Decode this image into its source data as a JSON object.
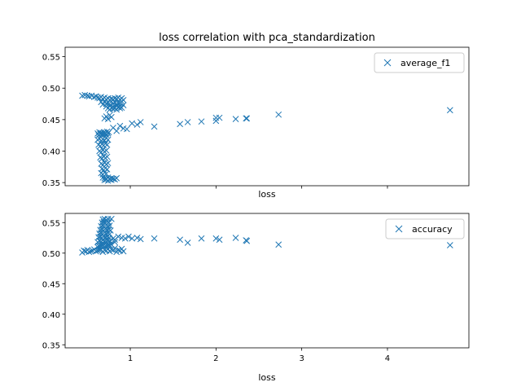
{
  "title": "loss correlation with pca_standardization",
  "marker_color": "#1f77b4",
  "chart_data": [
    {
      "type": "scatter",
      "name": "top",
      "xlabel": "loss",
      "ylabel": "",
      "xlim": [
        0.24,
        4.95
      ],
      "ylim": [
        0.345,
        0.565
      ],
      "xticks": [
        1,
        2,
        3,
        4
      ],
      "show_xtick_labels": false,
      "yticks": [
        0.35,
        0.4,
        0.45,
        0.5,
        0.55
      ],
      "ytick_labels": [
        "0.35",
        "0.40",
        "0.45",
        "0.50",
        "0.55"
      ],
      "grid": false,
      "legend": "top-right",
      "series": [
        {
          "name": "average_f1",
          "x": [
            0.44,
            0.47,
            0.5,
            0.52,
            0.55,
            0.58,
            0.6,
            0.62,
            0.64,
            0.66,
            0.68,
            0.7,
            0.72,
            0.74,
            0.76,
            0.78,
            0.8,
            0.82,
            0.84,
            0.86,
            0.88,
            0.9,
            0.92,
            0.66,
            0.7,
            0.74,
            0.78,
            0.82,
            0.86,
            0.9,
            0.68,
            0.72,
            0.76,
            0.8,
            0.84,
            0.88,
            0.72,
            0.76,
            0.8,
            0.84,
            0.88,
            0.92,
            0.74,
            0.78,
            0.82,
            0.86,
            0.9,
            0.76,
            0.8,
            0.84,
            0.88,
            0.7,
            0.72,
            0.74,
            0.76,
            0.78,
            0.8,
            0.84,
            0.88,
            0.92,
            0.96,
            1.02,
            1.08,
            1.12,
            1.28,
            1.58,
            1.67,
            1.83,
            2.0,
            2.0,
            2.04,
            2.23,
            2.35,
            2.36,
            2.73,
            4.73,
            0.62,
            0.63,
            0.64,
            0.65,
            0.66,
            0.67,
            0.68,
            0.69,
            0.7,
            0.71,
            0.72,
            0.73,
            0.74,
            0.75,
            0.62,
            0.64,
            0.66,
            0.68,
            0.7,
            0.72,
            0.74,
            0.63,
            0.65,
            0.67,
            0.69,
            0.71,
            0.73,
            0.64,
            0.66,
            0.68,
            0.7,
            0.72,
            0.65,
            0.67,
            0.69,
            0.71,
            0.73,
            0.66,
            0.68,
            0.7,
            0.72,
            0.74,
            0.67,
            0.69,
            0.71,
            0.73,
            0.66,
            0.68,
            0.7,
            0.72,
            0.68,
            0.7,
            0.72,
            0.74,
            0.76,
            0.78,
            0.7,
            0.72,
            0.74,
            0.76,
            0.78,
            0.8,
            0.82,
            0.84
          ],
          "y": [
            0.488,
            0.489,
            0.488,
            0.487,
            0.488,
            0.486,
            0.487,
            0.485,
            0.484,
            0.486,
            0.483,
            0.485,
            0.482,
            0.484,
            0.481,
            0.483,
            0.482,
            0.484,
            0.483,
            0.485,
            0.482,
            0.484,
            0.481,
            0.478,
            0.479,
            0.477,
            0.479,
            0.478,
            0.476,
            0.479,
            0.474,
            0.475,
            0.473,
            0.475,
            0.474,
            0.476,
            0.471,
            0.472,
            0.47,
            0.472,
            0.471,
            0.473,
            0.468,
            0.469,
            0.468,
            0.47,
            0.469,
            0.466,
            0.467,
            0.466,
            0.468,
            0.452,
            0.455,
            0.451,
            0.457,
            0.454,
            0.437,
            0.432,
            0.44,
            0.436,
            0.435,
            0.444,
            0.442,
            0.446,
            0.439,
            0.443,
            0.446,
            0.447,
            0.448,
            0.453,
            0.453,
            0.451,
            0.452,
            0.452,
            0.458,
            0.465,
            0.428,
            0.425,
            0.43,
            0.427,
            0.429,
            0.426,
            0.428,
            0.43,
            0.427,
            0.429,
            0.426,
            0.431,
            0.428,
            0.43,
            0.418,
            0.42,
            0.416,
            0.419,
            0.417,
            0.421,
            0.418,
            0.41,
            0.408,
            0.411,
            0.409,
            0.412,
            0.41,
            0.4,
            0.398,
            0.402,
            0.399,
            0.401,
            0.39,
            0.388,
            0.392,
            0.389,
            0.391,
            0.38,
            0.378,
            0.382,
            0.379,
            0.381,
            0.372,
            0.37,
            0.373,
            0.371,
            0.365,
            0.363,
            0.366,
            0.364,
            0.358,
            0.357,
            0.356,
            0.358,
            0.356,
            0.357,
            0.354,
            0.355,
            0.353,
            0.355,
            0.354,
            0.356,
            0.355,
            0.357
          ]
        }
      ]
    },
    {
      "type": "scatter",
      "name": "bottom",
      "xlabel": "loss",
      "ylabel": "",
      "xlim": [
        0.24,
        4.95
      ],
      "ylim": [
        0.345,
        0.565
      ],
      "xticks": [
        1,
        2,
        3,
        4
      ],
      "xtick_labels": [
        "1",
        "2",
        "3",
        "4"
      ],
      "show_xtick_labels": true,
      "yticks": [
        0.35,
        0.4,
        0.45,
        0.5,
        0.55
      ],
      "ytick_labels": [
        "0.35",
        "0.40",
        "0.45",
        "0.50",
        "0.55"
      ],
      "grid": false,
      "legend": "top-right",
      "series": [
        {
          "name": "accuracy",
          "x": [
            0.44,
            0.48,
            0.52,
            0.56,
            0.6,
            0.64,
            0.68,
            0.72,
            0.76,
            0.8,
            0.84,
            0.88,
            0.92,
            0.46,
            0.5,
            0.54,
            0.58,
            0.62,
            0.66,
            0.7,
            0.74,
            0.78,
            0.82,
            0.86,
            0.9,
            0.62,
            0.63,
            0.64,
            0.65,
            0.66,
            0.67,
            0.68,
            0.69,
            0.7,
            0.71,
            0.72,
            0.73,
            0.74,
            0.75,
            0.76,
            0.62,
            0.64,
            0.66,
            0.68,
            0.7,
            0.72,
            0.74,
            0.76,
            0.63,
            0.65,
            0.67,
            0.69,
            0.71,
            0.73,
            0.75,
            0.64,
            0.66,
            0.68,
            0.7,
            0.72,
            0.74,
            0.76,
            0.65,
            0.67,
            0.69,
            0.71,
            0.73,
            0.75,
            0.77,
            0.66,
            0.68,
            0.7,
            0.72,
            0.74,
            0.76,
            0.67,
            0.69,
            0.71,
            0.73,
            0.75,
            0.68,
            0.7,
            0.72,
            0.74,
            0.78,
            0.8,
            0.82,
            0.78,
            0.82,
            0.86,
            0.9,
            0.94,
            0.98,
            1.02,
            1.08,
            1.12,
            1.28,
            1.58,
            1.67,
            1.83,
            2.0,
            2.04,
            2.23,
            2.35,
            2.36,
            2.73,
            4.73
          ],
          "y": [
            0.501,
            0.503,
            0.502,
            0.504,
            0.503,
            0.505,
            0.502,
            0.504,
            0.503,
            0.505,
            0.502,
            0.504,
            0.503,
            0.504,
            0.505,
            0.503,
            0.506,
            0.504,
            0.506,
            0.505,
            0.507,
            0.506,
            0.508,
            0.505,
            0.507,
            0.51,
            0.512,
            0.511,
            0.513,
            0.512,
            0.514,
            0.513,
            0.515,
            0.514,
            0.512,
            0.511,
            0.513,
            0.512,
            0.514,
            0.513,
            0.518,
            0.52,
            0.519,
            0.521,
            0.52,
            0.522,
            0.521,
            0.52,
            0.526,
            0.527,
            0.525,
            0.528,
            0.526,
            0.527,
            0.525,
            0.532,
            0.533,
            0.531,
            0.534,
            0.532,
            0.533,
            0.531,
            0.538,
            0.539,
            0.537,
            0.54,
            0.538,
            0.539,
            0.537,
            0.544,
            0.545,
            0.543,
            0.546,
            0.544,
            0.545,
            0.55,
            0.551,
            0.549,
            0.552,
            0.55,
            0.555,
            0.556,
            0.554,
            0.556,
            0.556,
            0.524,
            0.522,
            0.514,
            0.518,
            0.527,
            0.525,
            0.524,
            0.527,
            0.524,
            0.525,
            0.523,
            0.524,
            0.522,
            0.517,
            0.524,
            0.524,
            0.522,
            0.525,
            0.521,
            0.52,
            0.514,
            0.513
          ]
        }
      ]
    }
  ]
}
